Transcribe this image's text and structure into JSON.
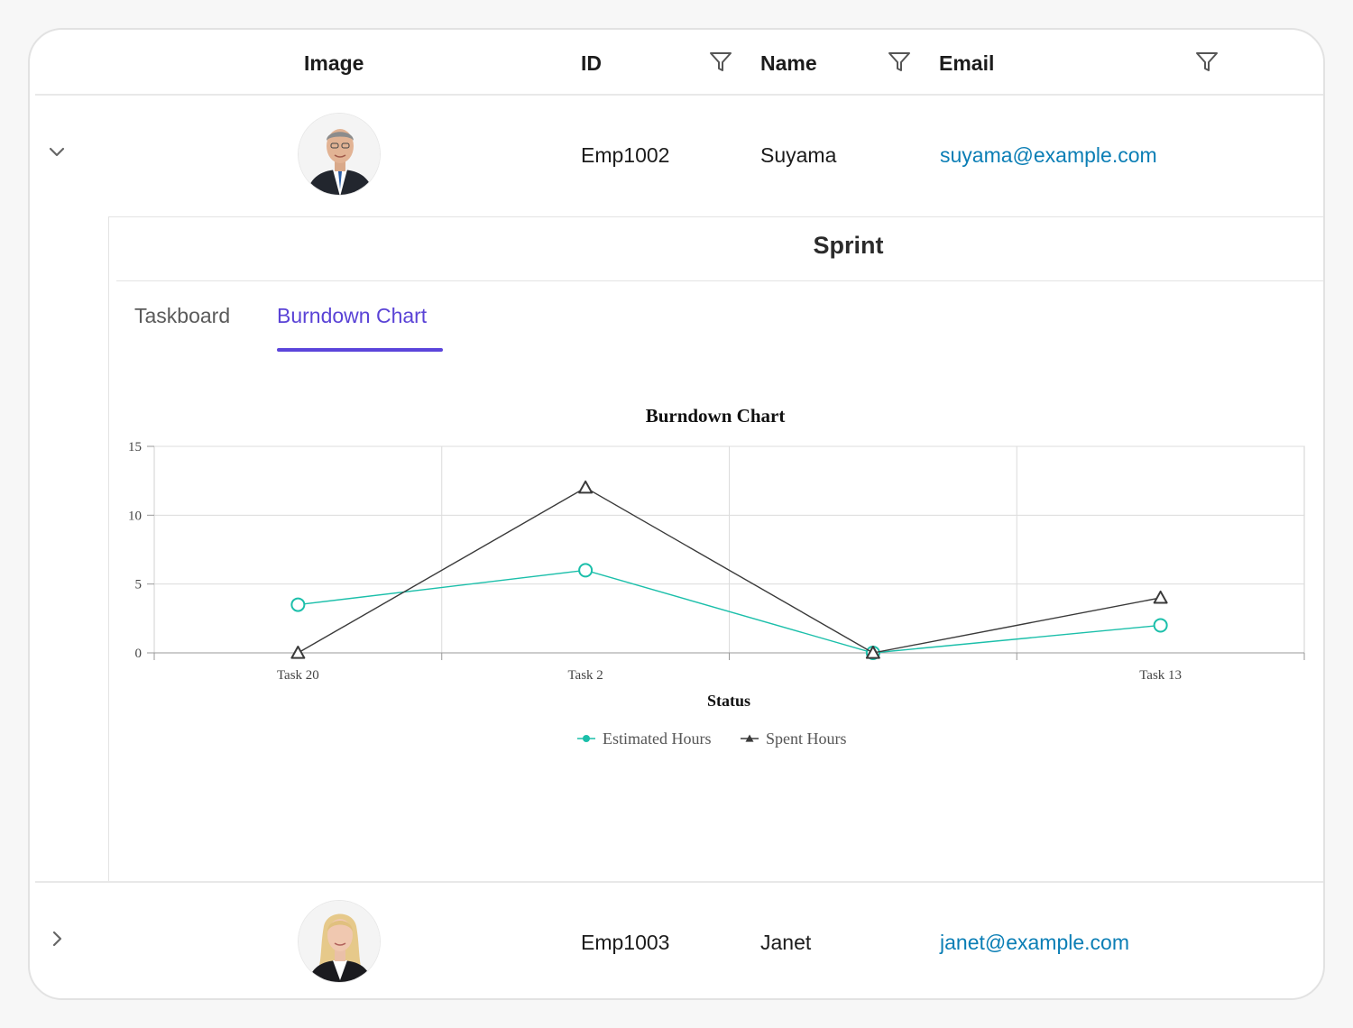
{
  "grid": {
    "columns": [
      "Image",
      "ID",
      "Name",
      "Email"
    ],
    "rows": [
      {
        "id": "Emp1002",
        "name": "Suyama",
        "email": "suyama@example.com",
        "expanded": true
      },
      {
        "id": "Emp1003",
        "name": "Janet",
        "email": "janet@example.com",
        "expanded": false
      }
    ]
  },
  "detail": {
    "title": "Sprint",
    "tabs": [
      {
        "label": "Taskboard",
        "active": false
      },
      {
        "label": "Burndown Chart",
        "active": true
      }
    ]
  },
  "chart_data": {
    "type": "line",
    "title": "Burndown Chart",
    "xlabel": "Status",
    "ylabel": "",
    "categories": [
      "Task 20",
      "Task 2",
      "",
      "Task 13"
    ],
    "ylim": [
      0,
      15
    ],
    "yticks": [
      0,
      5,
      10,
      15
    ],
    "grid": true,
    "legend": "bottom",
    "series": [
      {
        "name": "Estimated Hours",
        "values": [
          3.5,
          6,
          0,
          2
        ],
        "color": "#1bbfaa",
        "marker": "circle"
      },
      {
        "name": "Spent Hours",
        "values": [
          0,
          12,
          0,
          4
        ],
        "color": "#3a3a3a",
        "marker": "triangle"
      }
    ]
  },
  "colors": {
    "accent": "#5b45db",
    "link": "#0b7eb5"
  }
}
